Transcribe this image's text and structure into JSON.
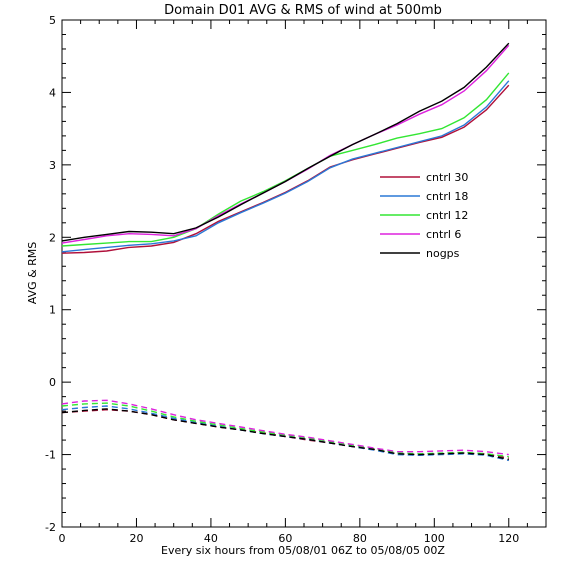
{
  "chart_data": {
    "type": "line",
    "title": "Domain D01 AVG & RMS of wind at 500mb",
    "xlabel": "Every six hours from 05/08/01 06Z to 05/08/05 00Z",
    "ylabel": "AVG & RMS",
    "xlim": [
      0,
      130
    ],
    "ylim": [
      -2,
      5
    ],
    "x_ticks": [
      0,
      20,
      40,
      60,
      80,
      100,
      120
    ],
    "x_tick_labels": [
      "0",
      "20",
      "40",
      "60",
      "80",
      "100",
      "120"
    ],
    "y_ticks": [
      -2,
      -1,
      0,
      1,
      2,
      3,
      4,
      5
    ],
    "y_tick_labels": [
      "-2",
      "-1",
      "0",
      "1",
      "2",
      "3",
      "4",
      "5"
    ],
    "legend_position": "middle-right",
    "x": [
      0,
      6,
      12,
      18,
      24,
      30,
      36,
      42,
      48,
      54,
      60,
      66,
      72,
      78,
      84,
      90,
      96,
      102,
      108,
      114,
      120
    ],
    "series": [
      {
        "name": "cntrl 30",
        "color": "#b0103a",
        "rms": [
          1.78,
          1.79,
          1.81,
          1.86,
          1.88,
          1.93,
          2.05,
          2.22,
          2.35,
          2.48,
          2.62,
          2.78,
          2.97,
          3.07,
          3.15,
          3.23,
          3.31,
          3.38,
          3.52,
          3.76,
          4.1
        ],
        "avg": [
          -0.42,
          -0.4,
          -0.38,
          -0.4,
          -0.45,
          -0.52,
          -0.57,
          -0.62,
          -0.66,
          -0.7,
          -0.75,
          -0.8,
          -0.84,
          -0.89,
          -0.93,
          -0.99,
          -1.0,
          -0.99,
          -0.98,
          -0.99,
          -1.05
        ]
      },
      {
        "name": "cntrl 18",
        "color": "#2a78d6",
        "rms": [
          1.8,
          1.83,
          1.86,
          1.89,
          1.91,
          1.95,
          2.02,
          2.2,
          2.34,
          2.47,
          2.61,
          2.77,
          2.96,
          3.08,
          3.16,
          3.24,
          3.32,
          3.4,
          3.55,
          3.8,
          4.16
        ],
        "avg": [
          -0.38,
          -0.35,
          -0.33,
          -0.37,
          -0.43,
          -0.5,
          -0.56,
          -0.61,
          -0.66,
          -0.71,
          -0.75,
          -0.79,
          -0.84,
          -0.89,
          -0.94,
          -1.0,
          -1.01,
          -1.0,
          -0.99,
          -1.01,
          -1.08
        ]
      },
      {
        "name": "cntrl 12",
        "color": "#33e633",
        "rms": [
          1.88,
          1.9,
          1.92,
          1.94,
          1.94,
          2.0,
          2.12,
          2.32,
          2.5,
          2.63,
          2.78,
          2.95,
          3.12,
          3.2,
          3.28,
          3.37,
          3.43,
          3.5,
          3.65,
          3.9,
          4.27
        ],
        "avg": [
          -0.33,
          -0.3,
          -0.29,
          -0.33,
          -0.4,
          -0.48,
          -0.54,
          -0.59,
          -0.64,
          -0.69,
          -0.73,
          -0.77,
          -0.82,
          -0.87,
          -0.92,
          -0.98,
          -0.99,
          -0.98,
          -0.97,
          -0.99,
          -1.03
        ]
      },
      {
        "name": "cntrl 6",
        "color": "#dd22dd",
        "rms": [
          1.92,
          1.97,
          2.02,
          2.05,
          2.04,
          2.02,
          2.12,
          2.3,
          2.46,
          2.61,
          2.77,
          2.94,
          3.13,
          3.28,
          3.42,
          3.55,
          3.7,
          3.83,
          4.02,
          4.3,
          4.65
        ],
        "avg": [
          -0.3,
          -0.26,
          -0.25,
          -0.3,
          -0.37,
          -0.45,
          -0.52,
          -0.57,
          -0.62,
          -0.67,
          -0.72,
          -0.76,
          -0.81,
          -0.86,
          -0.91,
          -0.96,
          -0.96,
          -0.95,
          -0.94,
          -0.96,
          -1.0
        ]
      },
      {
        "name": "nogps",
        "color": "#000000",
        "rms": [
          1.95,
          2.0,
          2.04,
          2.08,
          2.07,
          2.05,
          2.13,
          2.28,
          2.45,
          2.61,
          2.77,
          2.95,
          3.12,
          3.28,
          3.42,
          3.57,
          3.74,
          3.88,
          4.07,
          4.35,
          4.68
        ],
        "avg": [
          -0.42,
          -0.39,
          -0.37,
          -0.4,
          -0.45,
          -0.52,
          -0.57,
          -0.62,
          -0.66,
          -0.71,
          -0.75,
          -0.79,
          -0.84,
          -0.89,
          -0.93,
          -0.99,
          -1.0,
          -0.99,
          -0.98,
          -1.0,
          -1.07
        ]
      }
    ]
  }
}
